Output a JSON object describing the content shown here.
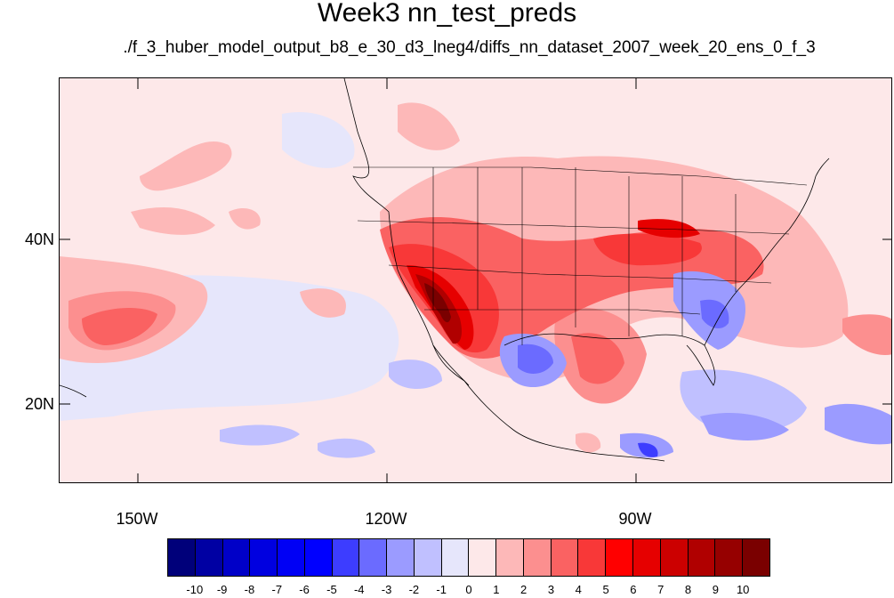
{
  "title": "Week3 nn_test_preds",
  "subtitle": "./f_3_huber_model_output_b8_e_30_d3_lneg4/diffs_nn_dataset_2007_week_20_ens_0_f_3",
  "lat_labels": [
    "40N",
    "20N"
  ],
  "lon_labels": [
    "150W",
    "120W",
    "90W"
  ],
  "colorbar": {
    "labels": [
      "-10",
      "-9",
      "-8",
      "-7",
      "-6",
      "-5",
      "-4",
      "-3",
      "-2",
      "-1",
      "0",
      "1",
      "2",
      "3",
      "4",
      "5",
      "6",
      "7",
      "8",
      "9",
      "10"
    ],
    "colors": [
      "#00007a",
      "#0000a3",
      "#0000c8",
      "#0000e0",
      "#0000f5",
      "#0000ff",
      "#3d3dff",
      "#6b6bff",
      "#9b9bff",
      "#c0c0ff",
      "#e6e6fb",
      "#fde8e9",
      "#fdb8b8",
      "#fc8f8f",
      "#fa6262",
      "#f83838",
      "#ff0000",
      "#e60000",
      "#cc0000",
      "#b00000",
      "#960000",
      "#7a0000"
    ]
  },
  "colors": {
    "background": "#fde8e9",
    "positive": "#fa6262",
    "negative": "#6b6bff"
  }
}
